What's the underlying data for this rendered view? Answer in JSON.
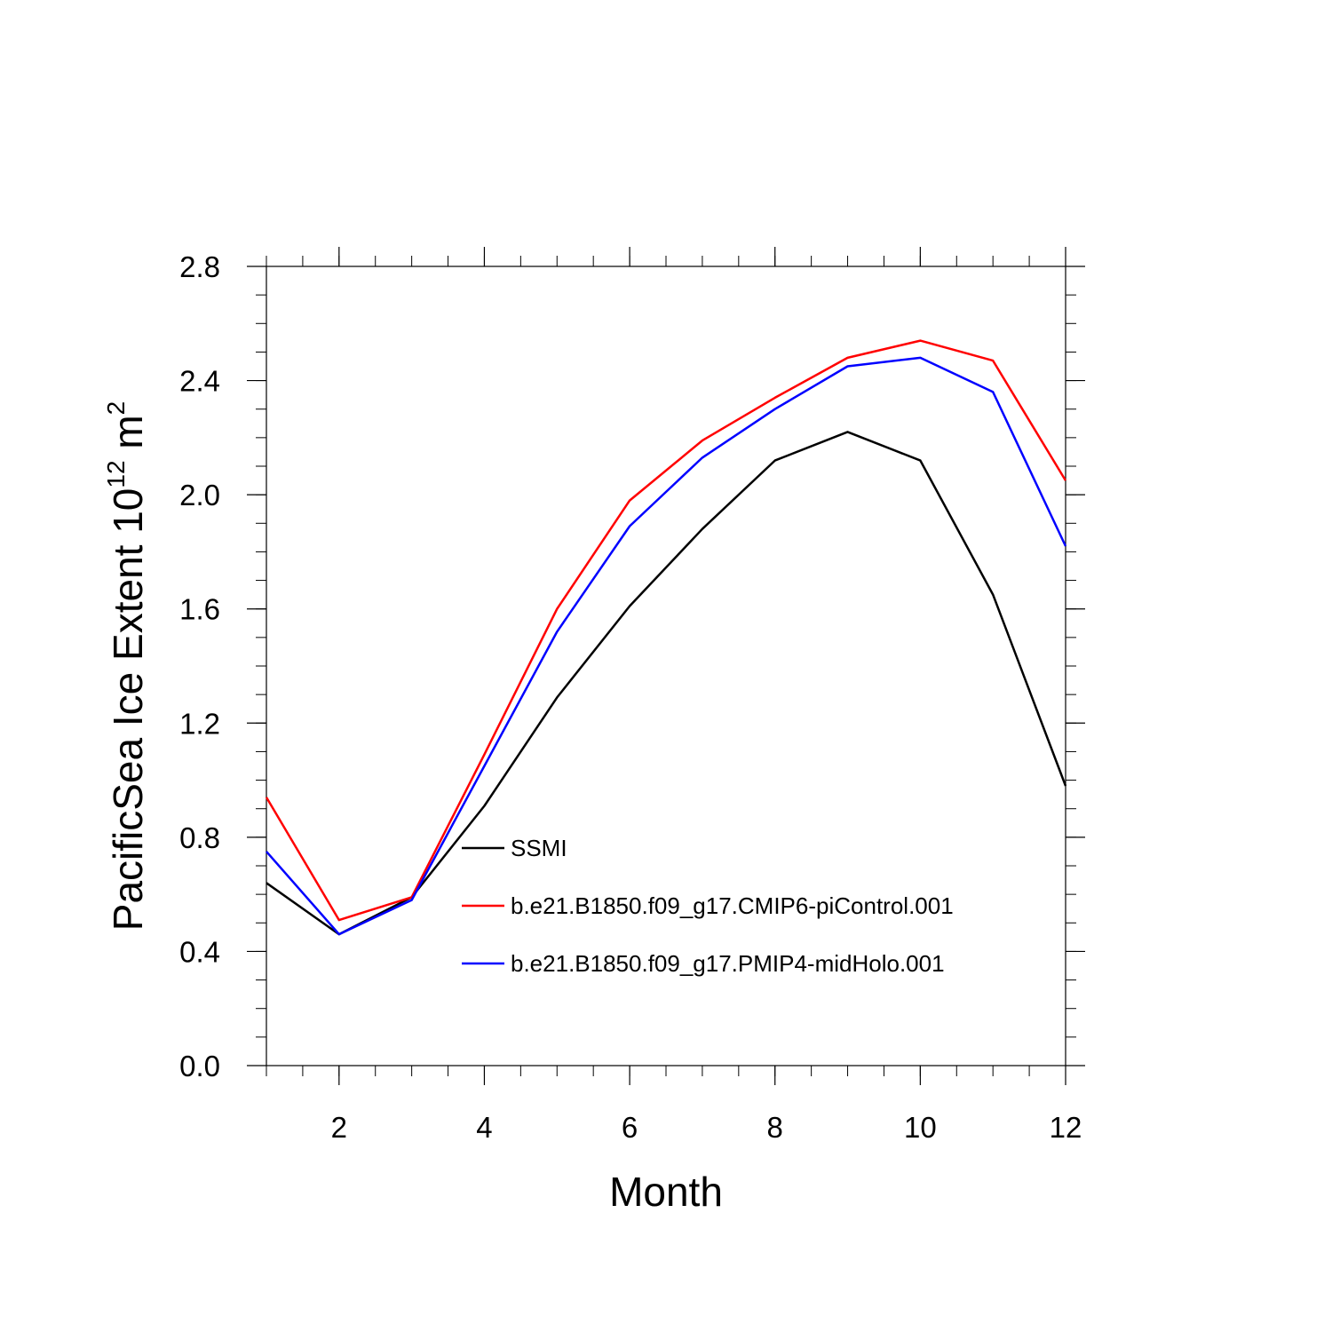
{
  "chart_data": {
    "type": "line",
    "title": "",
    "xlabel": "Month",
    "ylabel": {
      "text": "PacificSea Ice Extent 10",
      "exponent": "12",
      "unit": " m",
      "unit_exponent": "2"
    },
    "xlim": [
      1,
      12
    ],
    "ylim": [
      0.0,
      2.8
    ],
    "x_ticks": [
      2,
      4,
      6,
      8,
      10,
      12
    ],
    "x_tick_labels": [
      "2",
      "4",
      "6",
      "8",
      "10",
      "12"
    ],
    "y_ticks": [
      0.0,
      0.4,
      0.8,
      1.2,
      1.6,
      2.0,
      2.4,
      2.8
    ],
    "y_tick_labels": [
      "0.0",
      "0.4",
      "0.8",
      "1.2",
      "1.6",
      "2.0",
      "2.4",
      "2.8"
    ],
    "grid": false,
    "legend_position": "center-right inside plot, lower half",
    "x": [
      1,
      2,
      3,
      4,
      5,
      6,
      7,
      8,
      9,
      10,
      11,
      12
    ],
    "series": [
      {
        "name": "SSMI",
        "color": "#000000",
        "values": [
          0.64,
          0.46,
          0.59,
          0.91,
          1.29,
          1.61,
          1.88,
          2.12,
          2.22,
          2.12,
          1.65,
          0.98
        ]
      },
      {
        "name": "b.e21.B1850.f09_g17.CMIP6-piControl.001",
        "color": "#ff0000",
        "values": [
          0.94,
          0.51,
          0.59,
          1.09,
          1.6,
          1.98,
          2.19,
          2.34,
          2.48,
          2.54,
          2.47,
          2.05
        ]
      },
      {
        "name": "b.e21.B1850.f09_g17.PMIP4-midHolo.001",
        "color": "#0000ff",
        "values": [
          0.75,
          0.46,
          0.58,
          1.05,
          1.52,
          1.89,
          2.13,
          2.3,
          2.45,
          2.48,
          2.36,
          1.82
        ]
      }
    ]
  }
}
